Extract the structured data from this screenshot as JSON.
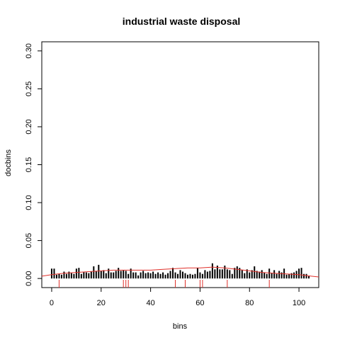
{
  "chart_data": {
    "type": "bar",
    "title": "industrial waste disposal",
    "xlabel": "bins",
    "ylabel": "docbins",
    "xlim": [
      -4,
      108
    ],
    "ylim": [
      -0.012,
      0.312
    ],
    "xticks": [
      "0",
      "20",
      "40",
      "60",
      "80",
      "100"
    ],
    "yticks": [
      "0.00",
      "0.05",
      "0.10",
      "0.15",
      "0.20",
      "0.25",
      "0.30"
    ],
    "grid": false,
    "colors": {
      "bars": "#000000",
      "density": "#e0302a",
      "rug": "#e0302a",
      "axis": "#000000"
    },
    "bins": [
      0,
      1,
      2,
      3,
      4,
      5,
      6,
      7,
      8,
      9,
      10,
      11,
      12,
      13,
      14,
      15,
      16,
      17,
      18,
      19,
      20,
      21,
      22,
      23,
      24,
      25,
      26,
      27,
      28,
      29,
      30,
      31,
      32,
      33,
      34,
      35,
      36,
      37,
      38,
      39,
      40,
      41,
      42,
      43,
      44,
      45,
      46,
      47,
      48,
      49,
      50,
      51,
      52,
      53,
      54,
      55,
      56,
      57,
      58,
      59,
      60,
      61,
      62,
      63,
      64,
      65,
      66,
      67,
      68,
      69,
      70,
      71,
      72,
      73,
      74,
      75,
      76,
      77,
      78,
      79,
      80,
      81,
      82,
      83,
      84,
      85,
      86,
      87,
      88,
      89,
      90,
      91,
      92,
      93,
      94,
      95,
      96,
      97,
      98,
      99,
      100,
      101,
      102,
      103,
      104
    ],
    "docbins": [
      0.013,
      0.013,
      0.005,
      0.006,
      0.005,
      0.009,
      0.006,
      0.009,
      0.007,
      0.006,
      0.013,
      0.014,
      0.006,
      0.009,
      0.008,
      0.007,
      0.009,
      0.016,
      0.01,
      0.018,
      0.01,
      0.011,
      0.007,
      0.013,
      0.008,
      0.008,
      0.01,
      0.014,
      0.01,
      0.011,
      0.01,
      0.006,
      0.013,
      0.008,
      0.008,
      0.004,
      0.008,
      0.01,
      0.007,
      0.008,
      0.007,
      0.009,
      0.006,
      0.008,
      0.006,
      0.008,
      0.005,
      0.007,
      0.01,
      0.014,
      0.008,
      0.006,
      0.011,
      0.009,
      0.007,
      0.005,
      0.006,
      0.005,
      0.006,
      0.014,
      0.008,
      0.006,
      0.011,
      0.009,
      0.01,
      0.02,
      0.012,
      0.017,
      0.012,
      0.012,
      0.017,
      0.012,
      0.011,
      0.006,
      0.014,
      0.016,
      0.014,
      0.011,
      0.007,
      0.012,
      0.008,
      0.011,
      0.016,
      0.01,
      0.009,
      0.011,
      0.008,
      0.006,
      0.013,
      0.007,
      0.011,
      0.006,
      0.01,
      0.008,
      0.013,
      0.005,
      0.006,
      0.007,
      0.008,
      0.01,
      0.013,
      0.014,
      0.006,
      0.006,
      0.003
    ],
    "density": {
      "x": [
        -4,
        0,
        5,
        10,
        15,
        20,
        25,
        30,
        35,
        40,
        45,
        50,
        55,
        60,
        65,
        70,
        75,
        80,
        85,
        90,
        95,
        100,
        105,
        108
      ],
      "y": [
        0.003,
        0.005,
        0.007,
        0.008,
        0.009,
        0.01,
        0.011,
        0.011,
        0.011,
        0.011,
        0.012,
        0.013,
        0.014,
        0.014,
        0.015,
        0.014,
        0.012,
        0.01,
        0.008,
        0.007,
        0.006,
        0.005,
        0.003,
        0.002
      ]
    },
    "rug": [
      3,
      29,
      30,
      31,
      50,
      54,
      60,
      61,
      71,
      88
    ]
  }
}
